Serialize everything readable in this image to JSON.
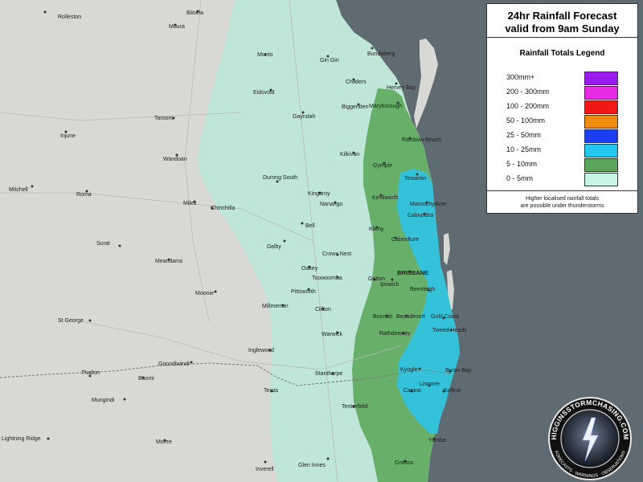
{
  "legend": {
    "title_line1": "24hr Rainfall Forecast",
    "title_line2": "valid from 9am Sunday",
    "heading": "Rainfall Totals Legend",
    "items": [
      {
        "label": "300mm+",
        "color": "#9b1cf0"
      },
      {
        "label": "200 - 300mm",
        "color": "#e62ae6"
      },
      {
        "label": "100 - 200mm",
        "color": "#f21818"
      },
      {
        "label": "50 - 100mm",
        "color": "#f28c10"
      },
      {
        "label": "25 - 50mm",
        "color": "#1a3ef0"
      },
      {
        "label": "10 - 25mm",
        "color": "#22c8f0"
      },
      {
        "label": "5 - 10mm",
        "color": "#5aa55a"
      },
      {
        "label": "0 - 5mm",
        "color": "#c6f5e6"
      }
    ],
    "note_line1": "Higher localised rainfall totals",
    "note_line2": "are possible under thunderstorms"
  },
  "map": {
    "ocean_color": "#5f6b72",
    "land_color": "#d8d8d4",
    "towns": [
      {
        "name": "Rolleston"
      },
      {
        "name": "Biloela"
      },
      {
        "name": "Moura"
      },
      {
        "name": "Monto"
      },
      {
        "name": "Gin Gin"
      },
      {
        "name": "Bundaberg"
      },
      {
        "name": "Childers"
      },
      {
        "name": "Hervey Bay"
      },
      {
        "name": "Eidsvold"
      },
      {
        "name": "Maryborough"
      },
      {
        "name": "Biggenden"
      },
      {
        "name": "Taroom"
      },
      {
        "name": "Gayndah"
      },
      {
        "name": "Injune"
      },
      {
        "name": "Rainbow Beach"
      },
      {
        "name": "Kilkivan"
      },
      {
        "name": "Wandoan"
      },
      {
        "name": "Gympie"
      },
      {
        "name": "Tewantin"
      },
      {
        "name": "Durong South"
      },
      {
        "name": "Mitchell"
      },
      {
        "name": "Roma"
      },
      {
        "name": "Miles"
      },
      {
        "name": "Kingaroy"
      },
      {
        "name": "Kenilworth"
      },
      {
        "name": "Maroochydore"
      },
      {
        "name": "Chinchilla"
      },
      {
        "name": "Nanango"
      },
      {
        "name": "Caloundra"
      },
      {
        "name": "Kilcoy"
      },
      {
        "name": "Bell"
      },
      {
        "name": "Caboolture"
      },
      {
        "name": "Surat"
      },
      {
        "name": "Dalby"
      },
      {
        "name": "Crows Nest"
      },
      {
        "name": "Meandarra"
      },
      {
        "name": "Oakey"
      },
      {
        "name": "BRISBANE"
      },
      {
        "name": "Toowoomba"
      },
      {
        "name": "Gatton"
      },
      {
        "name": "Ipswich"
      },
      {
        "name": "Moonie"
      },
      {
        "name": "Beenleigh"
      },
      {
        "name": "Pittsworth"
      },
      {
        "name": "Millmerran"
      },
      {
        "name": "Clifton"
      },
      {
        "name": "Boonah"
      },
      {
        "name": "Beaudesert"
      },
      {
        "name": "Gold Coast"
      },
      {
        "name": "St George"
      },
      {
        "name": "Warwick"
      },
      {
        "name": "Rathdowney"
      },
      {
        "name": "Tweed Heads"
      },
      {
        "name": "Inglewood"
      },
      {
        "name": "Goondiwindi"
      },
      {
        "name": "Kyogle"
      },
      {
        "name": "Byron Bay"
      },
      {
        "name": "Thallon"
      },
      {
        "name": "Boomi"
      },
      {
        "name": "Stanthorpe"
      },
      {
        "name": "Lismore"
      },
      {
        "name": "Casino"
      },
      {
        "name": "Ballina"
      },
      {
        "name": "Mungindi"
      },
      {
        "name": "Texas"
      },
      {
        "name": "Tenterfield"
      },
      {
        "name": "Lightning Ridge"
      },
      {
        "name": "Moree"
      },
      {
        "name": "Yamba"
      },
      {
        "name": "Inverell"
      },
      {
        "name": "Glen Innes"
      },
      {
        "name": "Grafton"
      }
    ]
  },
  "logo": {
    "text": "HIGGINSSTORMCHASING.COM",
    "tagline": "FORECASTS · WARNINGS · OBSERVATIONS"
  }
}
